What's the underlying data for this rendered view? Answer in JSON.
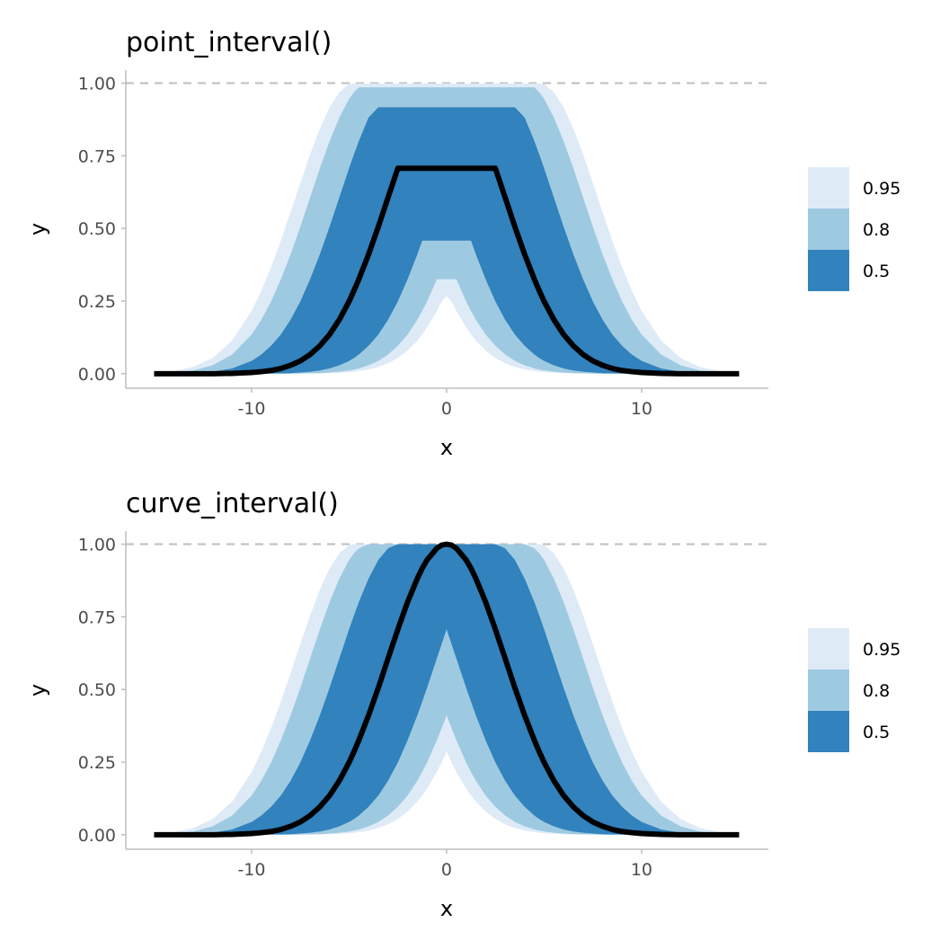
{
  "chart_data": [
    {
      "type": "area",
      "title": "point_interval()",
      "xlabel": "x",
      "ylabel": "y",
      "xlim": [
        -16.45,
        16.5
      ],
      "ylim": [
        -0.05,
        1.045
      ],
      "grid": false,
      "x_ticks": [
        -10,
        0,
        10
      ],
      "x_tick_labels": [
        "-10",
        "0",
        "10"
      ],
      "y_ticks": [
        0,
        0.25,
        0.5,
        0.75,
        1
      ],
      "y_tick_labels": [
        "0.00",
        "0.25",
        "0.50",
        "0.75",
        "1.00"
      ],
      "reference_line": {
        "y": 1,
        "style": "dashed",
        "color": "#bebebe"
      },
      "line_color": "#000000",
      "legend": {
        "position": "right",
        "entries": [
          {
            "label": "0.95",
            "color": "#deebf7"
          },
          {
            "label": "0.8",
            "color": "#9ecae1"
          },
          {
            "label": "0.5",
            "color": "#3182bd"
          }
        ]
      },
      "x": [
        -15,
        -14,
        -13,
        -12,
        -11,
        -10,
        -9.5,
        -9,
        -8.5,
        -8,
        -7.5,
        -7,
        -6.5,
        -6,
        -5.5,
        -5,
        -4.75,
        -4.5,
        -4,
        -3.5,
        -3,
        -2.5,
        -2,
        -1.5,
        -1.25,
        -1,
        -0.5,
        -0.25,
        0,
        0.25,
        0.5,
        1,
        1.25,
        1.5,
        2,
        2.5,
        3,
        3.5,
        4,
        4.5,
        4.75,
        5,
        5.5,
        6,
        6.5,
        7,
        7.5,
        8,
        8.5,
        9,
        9.5,
        10,
        11,
        12,
        13,
        14,
        15
      ],
      "bands": [
        {
          "level": "0.95",
          "lower": [
            0,
            0,
            0,
            0,
            0,
            0,
            0,
            0,
            0,
            0,
            0,
            0.001,
            0.001,
            0.002,
            0.003,
            0.005,
            0.007,
            0.009,
            0.014,
            0.023,
            0.036,
            0.054,
            0.08,
            0.114,
            0.135,
            0.159,
            0.216,
            0.249,
            0.267,
            0.249,
            0.216,
            0.159,
            0.135,
            0.114,
            0.08,
            0.054,
            0.036,
            0.023,
            0.014,
            0.009,
            0.007,
            0.005,
            0.003,
            0.002,
            0.001,
            0.001,
            0,
            0,
            0,
            0,
            0,
            0,
            0,
            0,
            0,
            0,
            0
          ],
          "upper": [
            0.003,
            0.009,
            0.023,
            0.054,
            0.114,
            0.216,
            0.286,
            0.367,
            0.458,
            0.556,
            0.657,
            0.755,
            0.843,
            0.917,
            0.969,
            0.997,
            0.999,
            0.999,
            0.999,
            0.999,
            0.999,
            0.999,
            0.999,
            0.999,
            0.999,
            0.999,
            0.999,
            0.999,
            0.999,
            0.999,
            0.999,
            0.999,
            0.999,
            0.999,
            0.999,
            0.999,
            0.999,
            0.999,
            0.999,
            0.999,
            0.999,
            0.997,
            0.969,
            0.917,
            0.843,
            0.755,
            0.657,
            0.556,
            0.458,
            0.367,
            0.286,
            0.216,
            0.114,
            0.054,
            0.023,
            0.009,
            0.003
          ]
        },
        {
          "level": "0.8",
          "lower": [
            0,
            0,
            0,
            0,
            0,
            0,
            0,
            0,
            0,
            0,
            0.001,
            0.001,
            0.002,
            0.004,
            0.007,
            0.011,
            0.014,
            0.018,
            0.029,
            0.044,
            0.066,
            0.096,
            0.135,
            0.186,
            0.216,
            0.249,
            0.325,
            0.325,
            0.325,
            0.325,
            0.325,
            0.249,
            0.216,
            0.186,
            0.135,
            0.096,
            0.066,
            0.044,
            0.029,
            0.018,
            0.014,
            0.011,
            0.007,
            0.004,
            0.002,
            0.001,
            0.001,
            0,
            0,
            0,
            0,
            0,
            0,
            0,
            0,
            0,
            0
          ],
          "upper": [
            0.001,
            0.004,
            0.011,
            0.029,
            0.066,
            0.135,
            0.186,
            0.249,
            0.325,
            0.411,
            0.506,
            0.607,
            0.707,
            0.801,
            0.882,
            0.946,
            0.969,
            0.986,
            0.986,
            0.986,
            0.986,
            0.986,
            0.986,
            0.986,
            0.986,
            0.986,
            0.986,
            0.986,
            0.986,
            0.986,
            0.986,
            0.986,
            0.986,
            0.986,
            0.986,
            0.986,
            0.986,
            0.986,
            0.986,
            0.986,
            0.969,
            0.946,
            0.882,
            0.801,
            0.707,
            0.607,
            0.506,
            0.411,
            0.325,
            0.249,
            0.186,
            0.135,
            0.066,
            0.029,
            0.011,
            0.004,
            0.001
          ]
        },
        {
          "level": "0.5",
          "lower": [
            0,
            0,
            0,
            0,
            0,
            0,
            0,
            0.001,
            0.001,
            0.002,
            0.004,
            0.007,
            0.011,
            0.018,
            0.029,
            0.044,
            0.054,
            0.066,
            0.096,
            0.135,
            0.186,
            0.249,
            0.325,
            0.411,
            0.458,
            0.458,
            0.458,
            0.458,
            0.458,
            0.458,
            0.458,
            0.458,
            0.458,
            0.411,
            0.325,
            0.249,
            0.186,
            0.135,
            0.096,
            0.066,
            0.054,
            0.044,
            0.029,
            0.018,
            0.011,
            0.007,
            0.004,
            0.002,
            0.001,
            0.001,
            0,
            0,
            0,
            0,
            0,
            0,
            0
          ],
          "upper": [
            0,
            0.001,
            0.002,
            0.007,
            0.018,
            0.044,
            0.066,
            0.096,
            0.135,
            0.186,
            0.249,
            0.325,
            0.411,
            0.506,
            0.607,
            0.707,
            0.755,
            0.801,
            0.882,
            0.917,
            0.917,
            0.917,
            0.917,
            0.917,
            0.917,
            0.917,
            0.917,
            0.917,
            0.917,
            0.917,
            0.917,
            0.917,
            0.917,
            0.917,
            0.917,
            0.917,
            0.917,
            0.917,
            0.882,
            0.801,
            0.755,
            0.707,
            0.607,
            0.506,
            0.411,
            0.325,
            0.249,
            0.186,
            0.135,
            0.096,
            0.066,
            0.044,
            0.018,
            0.007,
            0.002,
            0.001,
            0
          ]
        }
      ],
      "line": [
        0,
        0,
        0,
        0,
        0.001,
        0.004,
        0.007,
        0.011,
        0.018,
        0.029,
        0.044,
        0.066,
        0.096,
        0.135,
        0.186,
        0.249,
        0.286,
        0.325,
        0.411,
        0.506,
        0.607,
        0.707,
        0.707,
        0.707,
        0.707,
        0.707,
        0.707,
        0.707,
        0.707,
        0.707,
        0.707,
        0.707,
        0.707,
        0.707,
        0.707,
        0.707,
        0.607,
        0.506,
        0.411,
        0.325,
        0.286,
        0.249,
        0.186,
        0.135,
        0.096,
        0.066,
        0.044,
        0.029,
        0.018,
        0.011,
        0.007,
        0.004,
        0.001,
        0,
        0,
        0,
        0
      ]
    },
    {
      "type": "area",
      "title": "curve_interval()",
      "xlabel": "x",
      "ylabel": "y",
      "xlim": [
        -16.45,
        16.5
      ],
      "ylim": [
        -0.05,
        1.045
      ],
      "grid": false,
      "x_ticks": [
        -10,
        0,
        10
      ],
      "x_tick_labels": [
        "-10",
        "0",
        "10"
      ],
      "y_ticks": [
        0,
        0.25,
        0.5,
        0.75,
        1
      ],
      "y_tick_labels": [
        "0.00",
        "0.25",
        "0.50",
        "0.75",
        "1.00"
      ],
      "reference_line": {
        "y": 1,
        "style": "dashed",
        "color": "#bebebe"
      },
      "line_color": "#000000",
      "legend": {
        "position": "right",
        "entries": [
          {
            "label": "0.95",
            "color": "#deebf7"
          },
          {
            "label": "0.8",
            "color": "#9ecae1"
          },
          {
            "label": "0.5",
            "color": "#3182bd"
          }
        ]
      },
      "x": [
        -15,
        -14,
        -13,
        -12,
        -11,
        -10,
        -9.5,
        -9,
        -8.5,
        -8,
        -7.5,
        -7,
        -6.5,
        -6,
        -5.5,
        -5,
        -4.75,
        -4.5,
        -4,
        -3.5,
        -3,
        -2.5,
        -2,
        -1.5,
        -1.25,
        -1,
        -0.5,
        -0.25,
        0,
        0.25,
        0.5,
        1,
        1.25,
        1.5,
        2,
        2.5,
        3,
        3.5,
        4,
        4.5,
        4.75,
        5,
        5.5,
        6,
        6.5,
        7,
        7.5,
        8,
        8.5,
        9,
        9.5,
        10,
        11,
        12,
        13,
        14,
        15
      ],
      "bands": [
        {
          "level": "0.95",
          "lower": [
            0,
            0,
            0,
            0,
            0,
            0,
            0,
            0,
            0,
            0,
            0,
            0.001,
            0.001,
            0.002,
            0.003,
            0.005,
            0.007,
            0.009,
            0.014,
            0.023,
            0.036,
            0.054,
            0.08,
            0.114,
            0.135,
            0.159,
            0.216,
            0.249,
            0.286,
            0.249,
            0.216,
            0.159,
            0.135,
            0.114,
            0.08,
            0.054,
            0.036,
            0.023,
            0.014,
            0.009,
            0.007,
            0.005,
            0.003,
            0.002,
            0.001,
            0.001,
            0,
            0,
            0,
            0,
            0,
            0,
            0,
            0,
            0,
            0,
            0
          ],
          "upper": [
            0.003,
            0.009,
            0.023,
            0.054,
            0.114,
            0.216,
            0.286,
            0.367,
            0.458,
            0.556,
            0.657,
            0.755,
            0.843,
            0.917,
            0.969,
            0.997,
            1,
            1,
            1,
            1,
            1,
            1,
            1,
            1,
            1,
            1,
            1,
            1,
            1,
            1,
            1,
            1,
            1,
            1,
            1,
            1,
            1,
            1,
            1,
            1,
            1,
            0.997,
            0.969,
            0.917,
            0.843,
            0.755,
            0.657,
            0.556,
            0.458,
            0.367,
            0.286,
            0.216,
            0.114,
            0.054,
            0.023,
            0.009,
            0.003
          ]
        },
        {
          "level": "0.8",
          "lower": [
            0,
            0,
            0,
            0,
            0,
            0,
            0,
            0,
            0,
            0,
            0.001,
            0.001,
            0.002,
            0.004,
            0.007,
            0.011,
            0.014,
            0.018,
            0.029,
            0.044,
            0.066,
            0.096,
            0.135,
            0.186,
            0.216,
            0.249,
            0.325,
            0.367,
            0.411,
            0.367,
            0.325,
            0.249,
            0.216,
            0.186,
            0.135,
            0.096,
            0.066,
            0.044,
            0.029,
            0.018,
            0.014,
            0.011,
            0.007,
            0.004,
            0.002,
            0.001,
            0.001,
            0,
            0,
            0,
            0,
            0,
            0,
            0,
            0,
            0,
            0
          ],
          "upper": [
            0.001,
            0.004,
            0.011,
            0.029,
            0.066,
            0.135,
            0.186,
            0.249,
            0.325,
            0.411,
            0.506,
            0.607,
            0.707,
            0.801,
            0.882,
            0.946,
            0.969,
            0.986,
            1,
            1,
            1,
            1,
            1,
            1,
            1,
            1,
            1,
            1,
            1,
            1,
            1,
            1,
            1,
            1,
            1,
            1,
            1,
            1,
            1,
            0.986,
            0.969,
            0.946,
            0.882,
            0.801,
            0.707,
            0.607,
            0.506,
            0.411,
            0.325,
            0.249,
            0.186,
            0.135,
            0.066,
            0.029,
            0.011,
            0.004,
            0.001
          ]
        },
        {
          "level": "0.5",
          "lower": [
            0,
            0,
            0,
            0,
            0,
            0,
            0,
            0.001,
            0.001,
            0.002,
            0.004,
            0.007,
            0.011,
            0.018,
            0.029,
            0.044,
            0.054,
            0.066,
            0.096,
            0.135,
            0.186,
            0.249,
            0.325,
            0.411,
            0.458,
            0.506,
            0.607,
            0.657,
            0.707,
            0.657,
            0.607,
            0.506,
            0.458,
            0.411,
            0.325,
            0.249,
            0.186,
            0.135,
            0.096,
            0.066,
            0.054,
            0.044,
            0.029,
            0.018,
            0.011,
            0.007,
            0.004,
            0.002,
            0.001,
            0.001,
            0,
            0,
            0,
            0,
            0,
            0,
            0
          ],
          "upper": [
            0,
            0.001,
            0.002,
            0.007,
            0.018,
            0.044,
            0.066,
            0.096,
            0.135,
            0.186,
            0.249,
            0.325,
            0.411,
            0.506,
            0.607,
            0.707,
            0.755,
            0.801,
            0.882,
            0.946,
            0.986,
            1,
            1,
            1,
            1,
            1,
            1,
            1,
            1,
            1,
            1,
            1,
            1,
            1,
            1,
            1,
            0.986,
            0.946,
            0.882,
            0.801,
            0.755,
            0.707,
            0.607,
            0.506,
            0.411,
            0.325,
            0.249,
            0.186,
            0.135,
            0.096,
            0.066,
            0.044,
            0.018,
            0.007,
            0.002,
            0.001,
            0
          ]
        }
      ],
      "line": [
        0,
        0,
        0,
        0,
        0.001,
        0.004,
        0.007,
        0.011,
        0.018,
        0.029,
        0.044,
        0.066,
        0.096,
        0.135,
        0.186,
        0.249,
        0.286,
        0.325,
        0.411,
        0.506,
        0.607,
        0.707,
        0.801,
        0.882,
        0.917,
        0.946,
        0.986,
        0.997,
        1,
        0.997,
        0.986,
        0.946,
        0.917,
        0.882,
        0.801,
        0.707,
        0.607,
        0.506,
        0.411,
        0.325,
        0.286,
        0.249,
        0.186,
        0.135,
        0.096,
        0.066,
        0.044,
        0.029,
        0.018,
        0.011,
        0.007,
        0.004,
        0.001,
        0,
        0,
        0,
        0
      ]
    }
  ]
}
